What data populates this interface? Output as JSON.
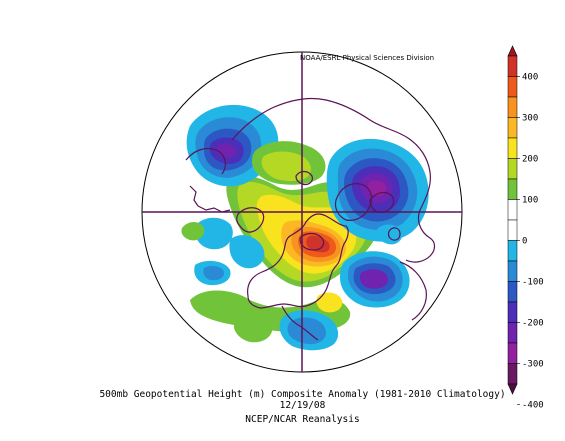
{
  "figure": {
    "credit": "NOAA/ESRL Physical Sciences Division",
    "caption_line1": "500mb Geopotential Height (m) Composite Anomaly (1981-2010 Climatology)",
    "caption_line2": "12/19/08",
    "caption_line3": "NCEP/NCAR Reanalysis"
  },
  "colorbar": {
    "labels": [
      "400",
      "300",
      "200",
      "100",
      "0",
      "-100",
      "-200",
      "-300",
      "-400"
    ],
    "bands": [
      {
        "color": "#d0332a"
      },
      {
        "color": "#ee5a1a"
      },
      {
        "color": "#f7931e"
      },
      {
        "color": "#fbb824"
      },
      {
        "color": "#f8e31e"
      },
      {
        "color": "#b5d825"
      },
      {
        "color": "#71c43a"
      },
      {
        "color": "#ffffff"
      },
      {
        "color": "#ffffff"
      },
      {
        "color": "#21b6e5"
      },
      {
        "color": "#2a8ad6"
      },
      {
        "color": "#2c58c4"
      },
      {
        "color": "#4b2fb8"
      },
      {
        "color": "#6f23ae"
      },
      {
        "color": "#93209f"
      },
      {
        "color": "#6b1864"
      }
    ]
  },
  "map": {
    "projection": "north-polar-stereographic",
    "anomalies": [
      {
        "region": "central-north-america",
        "level": "positive-max",
        "color": "#d0332a"
      },
      {
        "region": "hudson-bay-greenland-ring",
        "level": "positive",
        "color": "#f8e31e"
      },
      {
        "region": "eurasia",
        "level": "negative-max",
        "color": "#6f23ae"
      },
      {
        "region": "north-atlantic",
        "level": "negative",
        "color": "#93209f"
      },
      {
        "region": "north-pacific",
        "level": "negative",
        "color": "#4b2fb8"
      }
    ]
  }
}
